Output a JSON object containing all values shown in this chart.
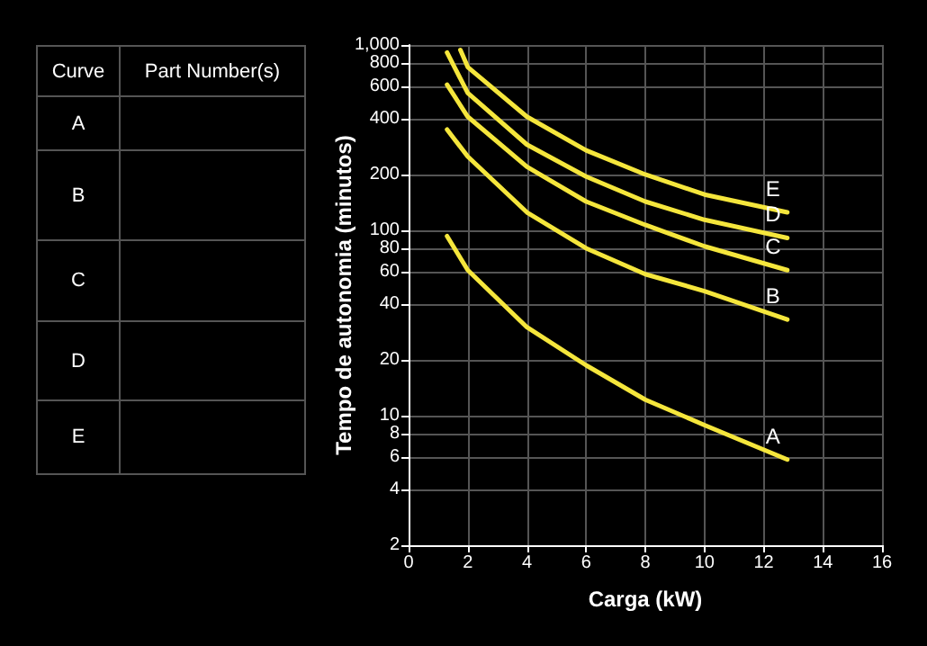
{
  "chart_data": {
    "type": "line",
    "xlabel": "Carga (kW)",
    "ylabel": "Tempo de autonomia (minutos)",
    "annotations": [
      "Curve",
      "Part Number(s)",
      "A",
      "B",
      "C",
      "D",
      "E"
    ],
    "log": "y",
    "grid": true,
    "legend": false,
    "marker": "none",
    "line_style": "solid",
    "xlim": [
      0,
      16
    ],
    "xticks": [
      0,
      2,
      4,
      6,
      8,
      10,
      12,
      14,
      16
    ],
    "ylim": [
      2,
      1000
    ],
    "yticks": [
      2,
      4,
      6,
      8,
      10,
      20,
      40,
      60,
      80,
      100,
      200,
      400,
      600,
      800,
      {
        "value": 1000,
        "label": "1,000"
      }
    ],
    "series": [
      {
        "name": "A",
        "color": "#f5e63c",
        "x": [
          1.3,
          2,
          4,
          6,
          8,
          10,
          12.8
        ],
        "values": [
          93,
          61,
          30,
          18.7,
          12.2,
          8.9,
          5.8
        ]
      },
      {
        "name": "B",
        "color": "#f5e63c",
        "x": [
          1.3,
          2,
          4,
          6,
          8,
          10,
          12.8
        ],
        "values": [
          350,
          250,
          125,
          80,
          58,
          47,
          33
        ]
      },
      {
        "name": "C",
        "color": "#f5e63c",
        "x": [
          1.3,
          2,
          4,
          6,
          8,
          10,
          12.8
        ],
        "values": [
          610,
          410,
          220,
          143,
          107,
          82,
          61
        ]
      },
      {
        "name": "D",
        "color": "#f5e63c",
        "x": [
          1.3,
          2,
          4,
          6,
          8,
          10,
          12.8
        ],
        "values": [
          910,
          550,
          290,
          195,
          143,
          114,
          91
        ]
      },
      {
        "name": "E",
        "color": "#f5e63c",
        "x": [
          1.75,
          2,
          4,
          6,
          8,
          10,
          12.8
        ],
        "values": [
          940,
          760,
          410,
          270,
          200,
          156,
          125
        ]
      }
    ]
  }
}
